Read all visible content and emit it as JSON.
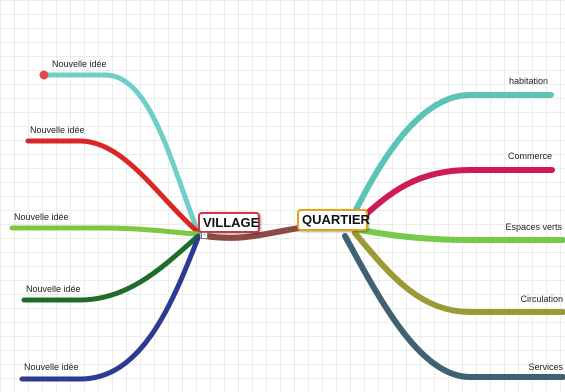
{
  "central": {
    "label": "VILLAGE",
    "color": "#c8374a"
  },
  "secondary": {
    "label": "QUARTIER",
    "color": "#e0a31a"
  },
  "connector_color": "#8c4a45",
  "collapse_symbol": "-",
  "left_branches": [
    {
      "label": "Nouvelle idée",
      "color": "#6ecfc7"
    },
    {
      "label": "Nouvelle idée",
      "color": "#d92626"
    },
    {
      "label": "Nouvelle idée",
      "color": "#7cc843"
    },
    {
      "label": "Nouvelle idée",
      "color": "#1f6b2a"
    },
    {
      "label": "Nouvelle idée",
      "color": "#2d3a94"
    }
  ],
  "right_branches": [
    {
      "label": "habitation",
      "color": "#5cc4b4"
    },
    {
      "label": "Commerce",
      "color": "#d01b52"
    },
    {
      "label": "Espaces verts",
      "color": "#76c94a"
    },
    {
      "label": "Circulation",
      "color": "#9a9a36"
    },
    {
      "label": "Services",
      "color": "#3f6173"
    }
  ],
  "first_node_dot_color": "#e04a4a"
}
